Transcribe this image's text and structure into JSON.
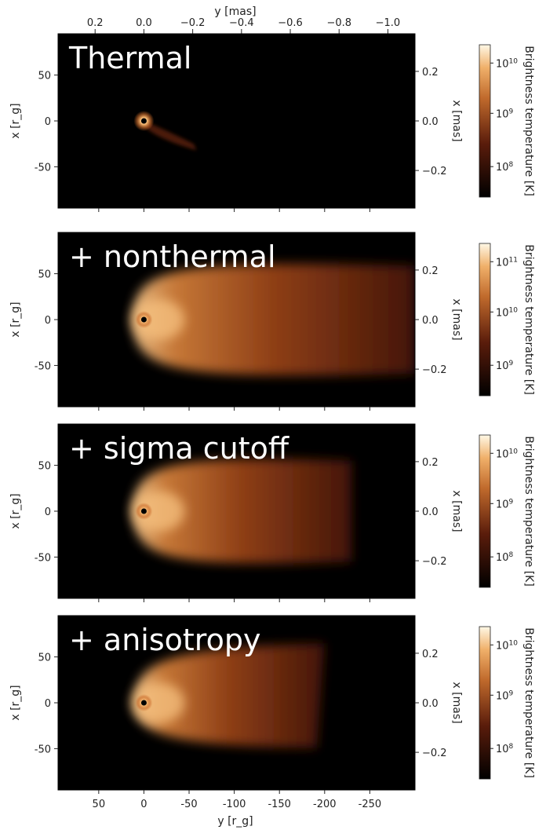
{
  "figure": {
    "top_axis_label": "y [mas]",
    "bottom_axis_label": "y [r_g]",
    "left_axis_label": "x [r_g]",
    "right_axis_label": "x [mas]",
    "colorbar_label": "Brightness temperature [K]",
    "colors": {
      "background": "#000000",
      "core_bright": "#fff3d6",
      "jet_mid": "#c96a2a",
      "jet_dark": "#3b1408"
    }
  },
  "chart_data": [
    {
      "type": "heatmap",
      "title": "Thermal",
      "xlabel": "y [r_g]",
      "ylabel": "x [r_g]",
      "secondary_ylabel": "x [mas]",
      "xlim": [
        95,
        -300
      ],
      "ylim": [
        -95,
        95
      ],
      "top_ticks_mas": [
        "0.2",
        "0.0",
        "−0.2",
        "−0.4",
        "−0.6",
        "−0.8",
        "−1.0"
      ],
      "y_ticks": [
        "50",
        "0",
        "-50"
      ],
      "y_ticks_mas": [
        "0.2",
        "0.0",
        "−0.2"
      ],
      "colorbar": {
        "label": "Brightness temperature [K]",
        "scale": "log",
        "ticks": [
          "10",
          "10",
          "10"
        ],
        "exponents": [
          "10",
          "9",
          "8"
        ]
      },
      "emission_extent_rg": 55
    },
    {
      "type": "heatmap",
      "title": "+ nonthermal",
      "xlabel": "y [r_g]",
      "ylabel": "x [r_g]",
      "secondary_ylabel": "x [mas]",
      "xlim": [
        95,
        -300
      ],
      "ylim": [
        -95,
        95
      ],
      "y_ticks": [
        "50",
        "0",
        "-50"
      ],
      "y_ticks_mas": [
        "0.2",
        "0.0",
        "−0.2"
      ],
      "colorbar": {
        "label": "Brightness temperature [K]",
        "scale": "log",
        "ticks": [
          "10",
          "10",
          "10"
        ],
        "exponents": [
          "11",
          "10",
          "9"
        ]
      },
      "emission_extent_rg": 300
    },
    {
      "type": "heatmap",
      "title": "+ sigma cutoff",
      "xlabel": "y [r_g]",
      "ylabel": "x [r_g]",
      "secondary_ylabel": "x [mas]",
      "xlim": [
        95,
        -300
      ],
      "ylim": [
        -95,
        95
      ],
      "y_ticks": [
        "50",
        "0",
        "-50"
      ],
      "y_ticks_mas": [
        "0.2",
        "0.0",
        "−0.2"
      ],
      "colorbar": {
        "label": "Brightness temperature [K]",
        "scale": "log",
        "ticks": [
          "10",
          "10",
          "10"
        ],
        "exponents": [
          "10",
          "9",
          "8"
        ]
      },
      "emission_extent_rg": 230
    },
    {
      "type": "heatmap",
      "title": "+ anisotropy",
      "xlabel": "y [r_g]",
      "ylabel": "x [r_g]",
      "secondary_ylabel": "x [mas]",
      "xlim": [
        95,
        -300
      ],
      "ylim": [
        -95,
        95
      ],
      "y_ticks": [
        "50",
        "0",
        "-50"
      ],
      "y_ticks_mas": [
        "0.2",
        "0.0",
        "−0.2"
      ],
      "x_ticks": [
        "50",
        "0",
        "-50",
        "-100",
        "-150",
        "-200",
        "-250"
      ],
      "colorbar": {
        "label": "Brightness temperature [K]",
        "scale": "log",
        "ticks": [
          "10",
          "10",
          "10"
        ],
        "exponents": [
          "10",
          "9",
          "8"
        ]
      },
      "emission_extent_rg": 200
    }
  ]
}
